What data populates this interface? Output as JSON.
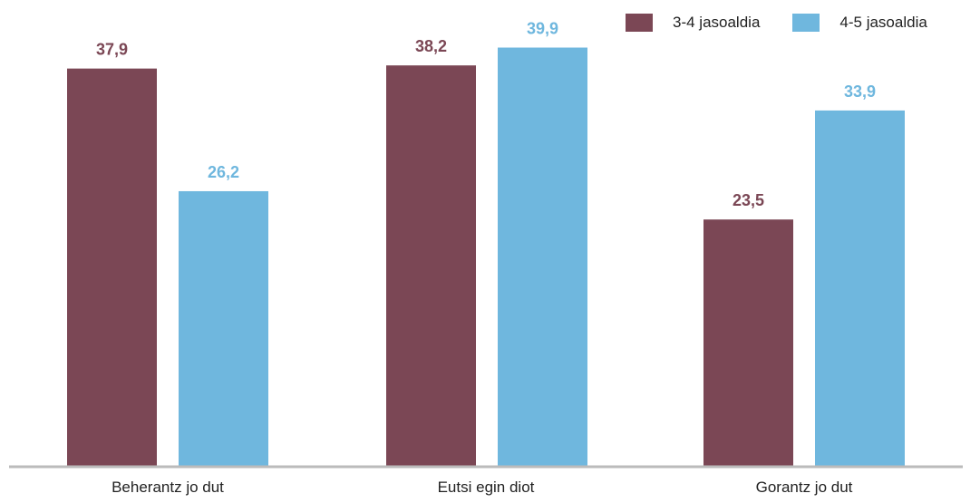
{
  "chart_data": {
    "type": "bar",
    "title": "",
    "xlabel": "",
    "ylabel": "",
    "ylim": [
      0,
      41.5
    ],
    "grid": false,
    "legend_position": "top-right",
    "categories": [
      "Beherantz jo dut",
      "Eutsi egin diot",
      "Gorantz jo dut"
    ],
    "series": [
      {
        "name": "3-4 jasoaldia",
        "color": "#7b4755",
        "values": [
          37.9,
          38.2,
          23.5
        ],
        "labels": [
          "37,9",
          "38,2",
          "23,5"
        ]
      },
      {
        "name": "4-5 jasoaldia",
        "color": "#6fb7de",
        "values": [
          26.2,
          39.9,
          33.9
        ],
        "labels": [
          "26,2",
          "39,9",
          "33,9"
        ]
      }
    ],
    "axis_color": "#bbbbbb"
  }
}
